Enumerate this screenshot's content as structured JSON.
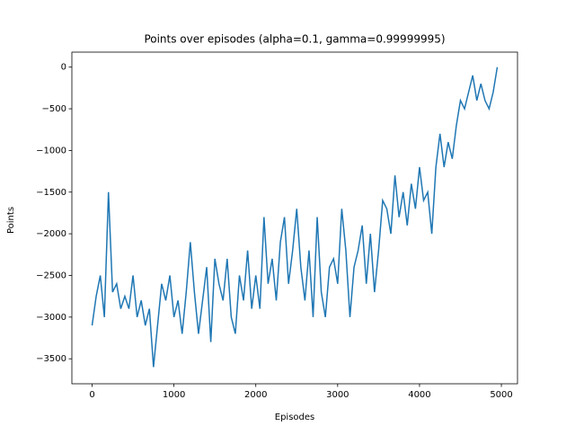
{
  "chart_data": {
    "type": "line",
    "title": "Points over episodes (alpha=0.1, gamma=0.99999995)",
    "x_label": "Episodes",
    "y_label": "Points",
    "x": [
      0,
      50,
      100,
      150,
      200,
      250,
      300,
      350,
      400,
      450,
      500,
      550,
      600,
      650,
      700,
      750,
      800,
      850,
      900,
      950,
      1000,
      1050,
      1100,
      1150,
      1200,
      1250,
      1300,
      1350,
      1400,
      1450,
      1500,
      1550,
      1600,
      1650,
      1700,
      1750,
      1800,
      1850,
      1900,
      1950,
      2000,
      2050,
      2100,
      2150,
      2200,
      2250,
      2300,
      2350,
      2400,
      2450,
      2500,
      2550,
      2600,
      2650,
      2700,
      2750,
      2800,
      2850,
      2900,
      2950,
      3000,
      3050,
      3100,
      3150,
      3200,
      3250,
      3300,
      3350,
      3400,
      3450,
      3500,
      3550,
      3600,
      3650,
      3700,
      3750,
      3800,
      3850,
      3900,
      3950,
      4000,
      4050,
      4100,
      4150,
      4200,
      4250,
      4300,
      4350,
      4400,
      4450,
      4500,
      4550,
      4600,
      4650,
      4700,
      4750,
      4800,
      4850,
      4900,
      4950
    ],
    "series": [
      {
        "color": "#1f77b4",
        "values": [
          -3100,
          -2750,
          -2500,
          -3000,
          -1500,
          -2700,
          -2600,
          -2900,
          -2750,
          -2900,
          -2500,
          -3000,
          -2800,
          -3100,
          -2900,
          -3600,
          -3100,
          -2600,
          -2800,
          -2500,
          -3000,
          -2800,
          -3200,
          -2700,
          -2100,
          -2700,
          -3200,
          -2800,
          -2400,
          -3300,
          -2300,
          -2600,
          -2800,
          -2300,
          -3000,
          -3200,
          -2500,
          -2800,
          -2200,
          -2900,
          -2500,
          -2900,
          -1800,
          -2600,
          -2300,
          -2800,
          -2100,
          -1800,
          -2600,
          -2200,
          -1700,
          -2400,
          -2800,
          -2200,
          -3000,
          -1800,
          -2700,
          -3000,
          -2400,
          -2300,
          -2600,
          -1700,
          -2200,
          -3000,
          -2400,
          -2200,
          -1900,
          -2600,
          -2000,
          -2700,
          -2200,
          -1600,
          -1700,
          -2000,
          -1300,
          -1800,
          -1500,
          -1900,
          -1400,
          -1700,
          -1200,
          -1600,
          -1500,
          -2000,
          -1200,
          -800,
          -1200,
          -900,
          -1100,
          -700,
          -400,
          -500,
          -300,
          -100,
          -400,
          -200,
          -400,
          -500,
          -300,
          0
        ]
      }
    ],
    "xlim": [
      -247,
      5197
    ],
    "ylim": [
      -3800,
      180
    ],
    "xticks": [
      0,
      1000,
      2000,
      3000,
      4000,
      5000
    ],
    "yticks": [
      0,
      {
        "value": -500,
        "label": "−500"
      },
      {
        "value": -1000,
        "label": "−1000"
      },
      {
        "value": -1500,
        "label": "−1500"
      },
      {
        "value": -2000,
        "label": "−2000"
      },
      {
        "value": -2500,
        "label": "−2500"
      },
      {
        "value": -3000,
        "label": "−3000"
      },
      {
        "value": -3500,
        "label": "−3500"
      }
    ]
  }
}
